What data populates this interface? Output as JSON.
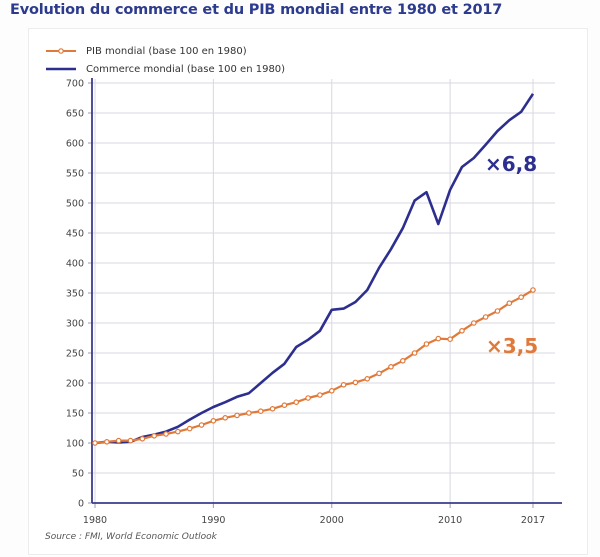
{
  "chart_data": {
    "type": "line",
    "title": "Evolution du commerce et du PIB mondial entre 1980 et 2017",
    "xlabel": "",
    "ylabel": "",
    "xlim": [
      1980,
      2017
    ],
    "ylim": [
      0,
      700
    ],
    "grid": true,
    "legend_position": "top-left",
    "x_ticks": [
      1980,
      1990,
      2000,
      2010,
      2017
    ],
    "y_ticks": [
      0,
      50,
      100,
      150,
      200,
      250,
      300,
      350,
      400,
      450,
      500,
      550,
      600,
      650,
      700
    ],
    "x": [
      1980,
      1981,
      1982,
      1983,
      1984,
      1985,
      1986,
      1987,
      1988,
      1989,
      1990,
      1991,
      1992,
      1993,
      1994,
      1995,
      1996,
      1997,
      1998,
      1999,
      2000,
      2001,
      2002,
      2003,
      2004,
      2005,
      2006,
      2007,
      2008,
      2009,
      2010,
      2011,
      2012,
      2013,
      2014,
      2015,
      2016,
      2017
    ],
    "series": [
      {
        "name": "PIB mondial (base 100 en 1980)",
        "color": "#e07a3a",
        "markers": true,
        "values": [
          100,
          102,
          104,
          104,
          107,
          112,
          115,
          119,
          124,
          130,
          137,
          142,
          146,
          150,
          153,
          157,
          163,
          168,
          175,
          180,
          187,
          197,
          201,
          207,
          216,
          227,
          237,
          250,
          265,
          274,
          273,
          287,
          300,
          310,
          320,
          333,
          343,
          355
        ]
      },
      {
        "name": "Commerce mondial (base 100 en 1980)",
        "color": "#2d2f8e",
        "markers": false,
        "values": [
          100,
          102,
          101,
          102,
          110,
          114,
          119,
          127,
          139,
          150,
          160,
          168,
          177,
          183,
          200,
          217,
          232,
          260,
          272,
          287,
          322,
          324,
          335,
          355,
          392,
          423,
          458,
          504,
          518,
          465,
          522,
          560,
          575,
          597,
          620,
          638,
          652,
          682
        ]
      }
    ],
    "annotations": [
      {
        "text": "×6,8",
        "series": "Commerce mondial (base 100 en 1980)",
        "color": "#2d2f8e"
      },
      {
        "text": "×3,5",
        "series": "PIB mondial (base 100 en 1980)",
        "color": "#e07a3a"
      }
    ],
    "source": "Source : FMI, World Economic Outlook"
  }
}
